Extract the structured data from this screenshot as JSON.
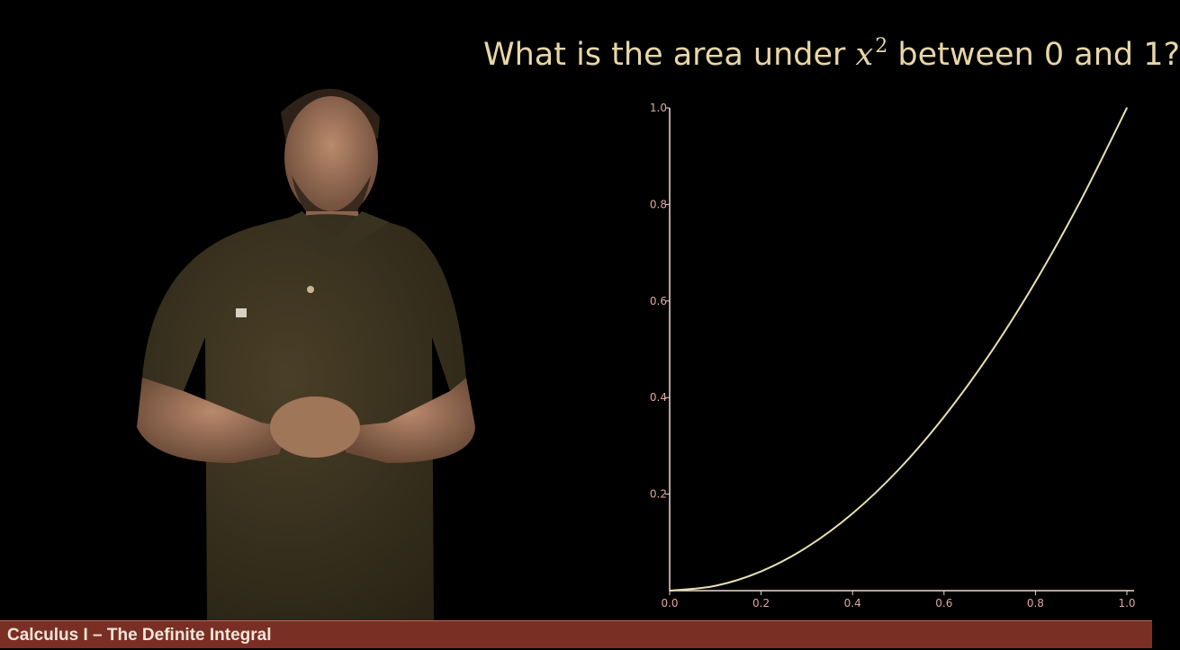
{
  "title": {
    "before": "What is the area under ",
    "variable": "x",
    "exponent": "2",
    "after": " between 0 and 1?"
  },
  "footer": {
    "label": "Calculus I – The Definite Integral"
  },
  "colors": {
    "background": "#000000",
    "title": "#E8D6A8",
    "curve": "#E8E0B0",
    "axis": "#F0D8D0",
    "tick_label": "#E0A89A",
    "footer_bar": "#7A2F24"
  },
  "chart_data": {
    "type": "line",
    "function": "x^2",
    "x": [
      0,
      0.1,
      0.2,
      0.3,
      0.4,
      0.5,
      0.6,
      0.7,
      0.8,
      0.9,
      1.0
    ],
    "series": [
      {
        "values": [
          0,
          0.01,
          0.04,
          0.09,
          0.16,
          0.25,
          0.36,
          0.49,
          0.64,
          0.81,
          1.0
        ]
      }
    ],
    "xlim": [
      0,
      1
    ],
    "ylim": [
      0,
      1
    ],
    "x_ticks": [
      "0.0",
      "0.2",
      "0.4",
      "0.6",
      "0.8",
      "1.0"
    ],
    "y_ticks": [
      "0.2",
      "0.4",
      "0.6",
      "0.8",
      "1.0"
    ],
    "xlabel": "",
    "ylabel": "",
    "grid": false
  }
}
